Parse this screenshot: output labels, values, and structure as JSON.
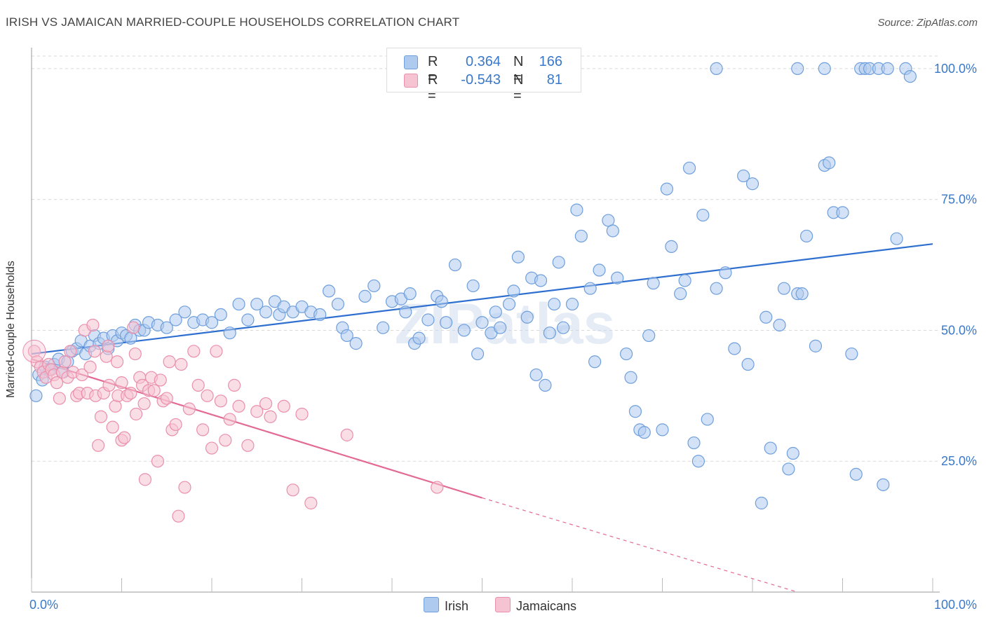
{
  "title": "IRISH VS JAMAICAN MARRIED-COUPLE HOUSEHOLDS CORRELATION CHART",
  "source": "Source: ZipAtlas.com",
  "watermark": "ZIPatlas",
  "legend": {
    "rows": [
      {
        "r_label": "R =",
        "r_value": "0.364",
        "n_label": "N =",
        "n_value": "166",
        "color": "#aecbef",
        "border": "#6f9fdc"
      },
      {
        "r_label": "R =",
        "r_value": "-0.543",
        "n_label": "N =",
        "n_value": "81",
        "color": "#f6c3d2",
        "border": "#ea8fac"
      }
    ]
  },
  "bottom_legend": [
    {
      "label": "Irish",
      "color": "#aecbef",
      "border": "#6f9fdc"
    },
    {
      "label": "Jamaicans",
      "color": "#f6c3d2",
      "border": "#ea8fac"
    }
  ],
  "chart_data": {
    "type": "scatter",
    "title": "IRISH VS JAMAICAN MARRIED-COUPLE HOUSEHOLDS CORRELATION CHART",
    "xlabel": "",
    "ylabel": "Married-couple Households",
    "xlim": [
      0,
      100
    ],
    "ylim": [
      0,
      104
    ],
    "x_tick_labels": [
      "0.0%",
      "100.0%"
    ],
    "y_ticks": [
      25,
      50,
      75,
      100
    ],
    "y_tick_labels": [
      "25.0%",
      "50.0%",
      "75.0%",
      "100.0%"
    ],
    "grid": "dashed horizontal",
    "legend_position": "top-center",
    "series": [
      {
        "name": "Irish",
        "color": "#6f9fdc",
        "fill": "#aecbef",
        "trend": {
          "x": [
            0,
            100
          ],
          "y": [
            45.5,
            66.5
          ],
          "style": "solid"
        },
        "points": [
          [
            0.5,
            37.5
          ],
          [
            0.8,
            41.5
          ],
          [
            1.2,
            40.5
          ],
          [
            1.5,
            43
          ],
          [
            2,
            42.5
          ],
          [
            2.5,
            43.5
          ],
          [
            3,
            44.5
          ],
          [
            3.5,
            42
          ],
          [
            4,
            44
          ],
          [
            4.5,
            46
          ],
          [
            5,
            46.5
          ],
          [
            5.5,
            48
          ],
          [
            6,
            45.5
          ],
          [
            6.5,
            47
          ],
          [
            7,
            49
          ],
          [
            7.5,
            47.5
          ],
          [
            8,
            48.5
          ],
          [
            8.5,
            46.5
          ],
          [
            9,
            49
          ],
          [
            9.5,
            48
          ],
          [
            10,
            49.5
          ],
          [
            10.5,
            49
          ],
          [
            11,
            48.5
          ],
          [
            11.5,
            51
          ],
          [
            12,
            50
          ],
          [
            12.5,
            50
          ],
          [
            13,
            51.5
          ],
          [
            14,
            51
          ],
          [
            15,
            50.5
          ],
          [
            16,
            52
          ],
          [
            17,
            53.5
          ],
          [
            18,
            51.5
          ],
          [
            19,
            52
          ],
          [
            20,
            51.5
          ],
          [
            21,
            53
          ],
          [
            22,
            49.5
          ],
          [
            23,
            55
          ],
          [
            24,
            52
          ],
          [
            25,
            55
          ],
          [
            26,
            53.5
          ],
          [
            27,
            55.5
          ],
          [
            27.5,
            53
          ],
          [
            28,
            54.5
          ],
          [
            29,
            53.5
          ],
          [
            30,
            54.5
          ],
          [
            31,
            53.5
          ],
          [
            32,
            53
          ],
          [
            33,
            57.5
          ],
          [
            34,
            55
          ],
          [
            34.5,
            50.5
          ],
          [
            35,
            49
          ],
          [
            36,
            47.5
          ],
          [
            37,
            56.5
          ],
          [
            38,
            58.5
          ],
          [
            39,
            50.5
          ],
          [
            40,
            55.5
          ],
          [
            41,
            56
          ],
          [
            41.5,
            53.5
          ],
          [
            42,
            57
          ],
          [
            42.5,
            47.5
          ],
          [
            43,
            48.5
          ],
          [
            44,
            52
          ],
          [
            45,
            56.5
          ],
          [
            45.5,
            55.5
          ],
          [
            46,
            51.5
          ],
          [
            47,
            62.5
          ],
          [
            48,
            50
          ],
          [
            49,
            58.5
          ],
          [
            49.5,
            45.5
          ],
          [
            50,
            51.5
          ],
          [
            51,
            49.5
          ],
          [
            51.5,
            53.5
          ],
          [
            52,
            50.5
          ],
          [
            53,
            55
          ],
          [
            53.5,
            57.5
          ],
          [
            54,
            64
          ],
          [
            55,
            52.5
          ],
          [
            55.5,
            60
          ],
          [
            56,
            41.5
          ],
          [
            56.5,
            59.5
          ],
          [
            57,
            39.5
          ],
          [
            57.5,
            49.5
          ],
          [
            58,
            55
          ],
          [
            58.5,
            63
          ],
          [
            59,
            50.5
          ],
          [
            60,
            55
          ],
          [
            60.5,
            73
          ],
          [
            61,
            68
          ],
          [
            62,
            58
          ],
          [
            62.5,
            44
          ],
          [
            63,
            61.5
          ],
          [
            64,
            71
          ],
          [
            64.5,
            69
          ],
          [
            65,
            60
          ],
          [
            66,
            45.5
          ],
          [
            66.5,
            41
          ],
          [
            67,
            34.5
          ],
          [
            67.5,
            31
          ],
          [
            68,
            30.5
          ],
          [
            68.5,
            49
          ],
          [
            69,
            59
          ],
          [
            70,
            31
          ],
          [
            70.5,
            77
          ],
          [
            71,
            66
          ],
          [
            72,
            57
          ],
          [
            72.5,
            59.5
          ],
          [
            73,
            81
          ],
          [
            73.5,
            28.5
          ],
          [
            74,
            25
          ],
          [
            74.5,
            72
          ],
          [
            75,
            33
          ],
          [
            76,
            58
          ],
          [
            77,
            61
          ],
          [
            78,
            46.5
          ],
          [
            79,
            79.5
          ],
          [
            79.5,
            43.5
          ],
          [
            80,
            78
          ],
          [
            81,
            17
          ],
          [
            81.5,
            52.5
          ],
          [
            82,
            27.5
          ],
          [
            83,
            51
          ],
          [
            83.5,
            58
          ],
          [
            84,
            23.5
          ],
          [
            84.5,
            26.5
          ],
          [
            85,
            57
          ],
          [
            85.5,
            57
          ],
          [
            86,
            68
          ],
          [
            87,
            47
          ],
          [
            88,
            81.5
          ],
          [
            88.5,
            82
          ],
          [
            89,
            72.5
          ],
          [
            90,
            72.5
          ],
          [
            91,
            45.5
          ],
          [
            91.5,
            22.5
          ],
          [
            92,
            100
          ],
          [
            92.5,
            100
          ],
          [
            93,
            100
          ],
          [
            94,
            100
          ],
          [
            94.5,
            20.5
          ],
          [
            95,
            100
          ],
          [
            96,
            67.5
          ],
          [
            97,
            100
          ],
          [
            97.5,
            98.5
          ],
          [
            76,
            100
          ],
          [
            85,
            100
          ],
          [
            88,
            100
          ]
        ]
      },
      {
        "name": "Jamaicans",
        "color": "#ea8fac",
        "fill": "#f6c3d2",
        "trend": {
          "x": [
            0,
            50
          ],
          "y": [
            44.5,
            18
          ],
          "style": "solid",
          "extended_to": [
            85,
            0
          ]
        },
        "points": [
          [
            0.3,
            46
          ],
          [
            0.6,
            44
          ],
          [
            1,
            43
          ],
          [
            1.3,
            42
          ],
          [
            1.6,
            41
          ],
          [
            1.9,
            43.5
          ],
          [
            2.2,
            42.5
          ],
          [
            2.5,
            41.5
          ],
          [
            2.8,
            40
          ],
          [
            3.1,
            37
          ],
          [
            3.4,
            42
          ],
          [
            3.7,
            44
          ],
          [
            4,
            41
          ],
          [
            4.3,
            46
          ],
          [
            4.6,
            42
          ],
          [
            5,
            37.5
          ],
          [
            5.3,
            38
          ],
          [
            5.6,
            41.5
          ],
          [
            5.9,
            50
          ],
          [
            6.2,
            38
          ],
          [
            6.5,
            43
          ],
          [
            6.8,
            51
          ],
          [
            7.1,
            37.5
          ],
          [
            7.4,
            28
          ],
          [
            7.7,
            33.5
          ],
          [
            8,
            38
          ],
          [
            8.3,
            45
          ],
          [
            8.6,
            39.5
          ],
          [
            9,
            31.5
          ],
          [
            9.3,
            35.5
          ],
          [
            9.6,
            37.5
          ],
          [
            10,
            29
          ],
          [
            10.3,
            29.5
          ],
          [
            10.6,
            37.5
          ],
          [
            11,
            38
          ],
          [
            11.3,
            50.5
          ],
          [
            11.6,
            34
          ],
          [
            12,
            41
          ],
          [
            12.3,
            39.5
          ],
          [
            12.6,
            21.5
          ],
          [
            13,
            38.5
          ],
          [
            13.3,
            41
          ],
          [
            13.6,
            38.5
          ],
          [
            14,
            25
          ],
          [
            14.3,
            40.5
          ],
          [
            14.6,
            36.5
          ],
          [
            15,
            37
          ],
          [
            15.3,
            44
          ],
          [
            15.6,
            31
          ],
          [
            16,
            32
          ],
          [
            16.3,
            14.5
          ],
          [
            16.6,
            43.5
          ],
          [
            17,
            20
          ],
          [
            17.5,
            35
          ],
          [
            18,
            46
          ],
          [
            18.5,
            39.5
          ],
          [
            19,
            31
          ],
          [
            19.5,
            37.5
          ],
          [
            20,
            27.5
          ],
          [
            20.5,
            46
          ],
          [
            21,
            36.5
          ],
          [
            21.5,
            29
          ],
          [
            22,
            33
          ],
          [
            22.5,
            39.5
          ],
          [
            23,
            35.5
          ],
          [
            24,
            28
          ],
          [
            25,
            34.5
          ],
          [
            26,
            36
          ],
          [
            26.5,
            33.5
          ],
          [
            28,
            35.5
          ],
          [
            29,
            19.5
          ],
          [
            30,
            34
          ],
          [
            31,
            17
          ],
          [
            35,
            30
          ],
          [
            45,
            20
          ],
          [
            8.5,
            47
          ],
          [
            10,
            40
          ],
          [
            9.5,
            44
          ],
          [
            7,
            46
          ],
          [
            12.5,
            36
          ],
          [
            11.5,
            45.5
          ]
        ]
      }
    ]
  }
}
